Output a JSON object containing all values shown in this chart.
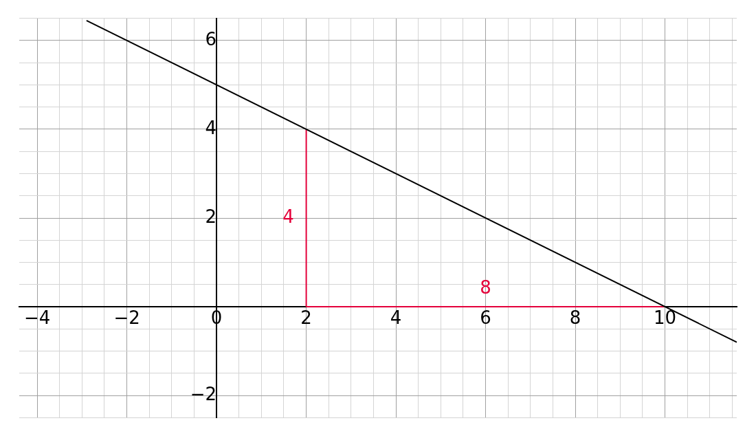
{
  "chart_data": {
    "type": "line",
    "marker": "none",
    "legend": false,
    "grid": true,
    "xlim": [
      -4.4,
      11.6
    ],
    "ylim": [
      -2.5,
      6.5
    ],
    "xticks": [
      {
        "value": -4,
        "label": "−4"
      },
      {
        "value": -3.5,
        "label": null
      },
      {
        "value": -3,
        "label": null
      },
      {
        "value": -2.5,
        "label": null
      },
      {
        "value": -2,
        "label": "−2"
      },
      {
        "value": -1.5,
        "label": null
      },
      {
        "value": -1,
        "label": null
      },
      {
        "value": -0.5,
        "label": null
      },
      {
        "value": 0,
        "label": "0"
      },
      {
        "value": 0.5,
        "label": null
      },
      {
        "value": 1,
        "label": null
      },
      {
        "value": 1.5,
        "label": null
      },
      2,
      {
        "value": 2.5,
        "label": null
      },
      {
        "value": 3,
        "label": null
      },
      {
        "value": 3.5,
        "label": null
      },
      4,
      {
        "value": 4.5,
        "label": null
      },
      {
        "value": 5,
        "label": null
      },
      {
        "value": 5.5,
        "label": null
      },
      6,
      {
        "value": 6.5,
        "label": null
      },
      {
        "value": 7,
        "label": null
      },
      {
        "value": 7.5,
        "label": null
      },
      8,
      {
        "value": 8.5,
        "label": null
      },
      {
        "value": 9,
        "label": null
      },
      {
        "value": 9.5,
        "label": null
      },
      10,
      {
        "value": 10.5,
        "label": null
      },
      {
        "value": 11,
        "label": null
      },
      {
        "value": 11.5,
        "label": null
      }
    ],
    "yticks": [
      {
        "value": -2.5,
        "label": null
      },
      {
        "value": -2,
        "label": "−2"
      },
      {
        "value": -1.5,
        "label": null
      },
      {
        "value": -1,
        "label": null
      },
      {
        "value": -0.5,
        "label": null
      },
      {
        "value": 0,
        "label": null
      },
      {
        "value": 0.5,
        "label": null
      },
      {
        "value": 1,
        "label": null
      },
      {
        "value": 1.5,
        "label": null
      },
      2,
      {
        "value": 2.5,
        "label": null
      },
      {
        "value": 3,
        "label": null
      },
      {
        "value": 3.5,
        "label": null
      },
      4,
      {
        "value": 4.5,
        "label": null
      },
      {
        "value": 5,
        "label": null
      },
      {
        "value": 5.5,
        "label": null
      },
      6,
      {
        "value": 6.5,
        "label": null
      }
    ],
    "series": [
      {
        "color": "#000000",
        "x": [
          -2.9,
          11.6
        ],
        "values": [
          6.45,
          -0.8
        ]
      },
      {
        "color": "#e4003a",
        "x": [
          2,
          2
        ],
        "values": [
          0,
          4
        ]
      },
      {
        "color": "#e4003a",
        "x": [
          2,
          10
        ],
        "values": [
          0,
          0
        ]
      }
    ],
    "annotations": [
      "4",
      "8"
    ]
  }
}
